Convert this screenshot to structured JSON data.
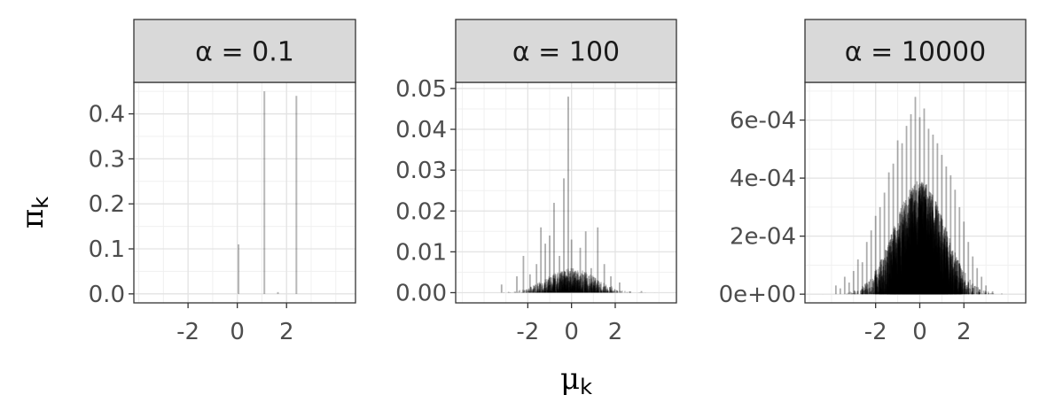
{
  "chart_data": {
    "type": "bar",
    "description_style": "faceted spike plot",
    "xlabel_symbol": "μ",
    "xlabel_sub": "k",
    "ylabel_symbol": "π",
    "ylabel_sub": "k",
    "facets": [
      {
        "strip": "α = 0.1",
        "xlim": [
          -4.2,
          4.8
        ],
        "x_ticks": [
          -2,
          0,
          2
        ],
        "x_tick_labels": [
          "-2",
          "0",
          "2"
        ],
        "ylim": [
          -0.02,
          0.47
        ],
        "y_ticks": [
          0.0,
          0.1,
          0.2,
          0.3,
          0.4
        ],
        "y_tick_labels": [
          "0.0",
          "0.1",
          "0.2",
          "0.3",
          "0.4"
        ],
        "spikes": [
          {
            "x": 0.05,
            "y": 0.11
          },
          {
            "x": 1.1,
            "y": 0.45
          },
          {
            "x": 1.65,
            "y": 0.004
          },
          {
            "x": 2.4,
            "y": 0.44
          }
        ]
      },
      {
        "strip": "α = 100",
        "xlim": [
          -5.3,
          4.8
        ],
        "x_ticks": [
          -2,
          0,
          2
        ],
        "x_tick_labels": [
          "-2",
          "0",
          "2"
        ],
        "ylim": [
          -0.0025,
          0.0515
        ],
        "y_ticks": [
          0.0,
          0.01,
          0.02,
          0.03,
          0.04,
          0.05
        ],
        "y_tick_labels": [
          "0.00",
          "0.01",
          "0.02",
          "0.03",
          "0.04",
          "0.05"
        ],
        "spikes": [
          {
            "x": -3.2,
            "y": 0.002
          },
          {
            "x": -2.5,
            "y": 0.004
          },
          {
            "x": -2.2,
            "y": 0.009
          },
          {
            "x": -1.9,
            "y": 0.0045
          },
          {
            "x": -1.6,
            "y": 0.007
          },
          {
            "x": -1.4,
            "y": 0.016
          },
          {
            "x": -1.2,
            "y": 0.012
          },
          {
            "x": -1.0,
            "y": 0.014
          },
          {
            "x": -0.8,
            "y": 0.022
          },
          {
            "x": -0.55,
            "y": 0.009
          },
          {
            "x": -0.35,
            "y": 0.028
          },
          {
            "x": -0.15,
            "y": 0.048
          },
          {
            "x": 0.0,
            "y": 0.013
          },
          {
            "x": 0.2,
            "y": 0.004
          },
          {
            "x": 0.4,
            "y": 0.011
          },
          {
            "x": 0.65,
            "y": 0.015
          },
          {
            "x": 0.9,
            "y": 0.006
          },
          {
            "x": 1.2,
            "y": 0.016
          },
          {
            "x": 1.5,
            "y": 0.007
          },
          {
            "x": 1.8,
            "y": 0.004
          },
          {
            "x": 2.2,
            "y": 0.0025
          },
          {
            "x": 3.2,
            "y": 0.0004
          }
        ]
      },
      {
        "strip": "α = 10000",
        "xlim": [
          -5.2,
          4.8
        ],
        "x_ticks": [
          -2,
          0,
          2
        ],
        "x_tick_labels": [
          "-2",
          "0",
          "2"
        ],
        "ylim": [
          -3e-05,
          0.00073
        ],
        "y_ticks": [
          0.0,
          0.0002,
          0.0004,
          0.0006
        ],
        "y_tick_labels": [
          "0e+00",
          "2e-04",
          "4e-04",
          "6e-04"
        ],
        "spikes": [
          {
            "x": -3.8,
            "y": 3e-05
          },
          {
            "x": -3.6,
            "y": 2e-05
          },
          {
            "x": -3.4,
            "y": 6e-05
          },
          {
            "x": -3.2,
            "y": 4e-05
          },
          {
            "x": -3.0,
            "y": 8e-05
          },
          {
            "x": -2.8,
            "y": 0.00012
          },
          {
            "x": -2.6,
            "y": 0.00011
          },
          {
            "x": -2.4,
            "y": 0.00018
          },
          {
            "x": -2.2,
            "y": 0.00022
          },
          {
            "x": -2.0,
            "y": 0.00027
          },
          {
            "x": -1.8,
            "y": 0.0003
          },
          {
            "x": -1.6,
            "y": 0.00035
          },
          {
            "x": -1.4,
            "y": 0.00042
          },
          {
            "x": -1.2,
            "y": 0.00045
          },
          {
            "x": -1.0,
            "y": 0.00053
          },
          {
            "x": -0.8,
            "y": 0.00052
          },
          {
            "x": -0.6,
            "y": 0.00058
          },
          {
            "x": -0.4,
            "y": 0.00062
          },
          {
            "x": -0.2,
            "y": 0.00068
          },
          {
            "x": 0.0,
            "y": 0.00061
          },
          {
            "x": 0.2,
            "y": 0.00064
          },
          {
            "x": 0.4,
            "y": 0.00057
          },
          {
            "x": 0.6,
            "y": 0.00055
          },
          {
            "x": 0.8,
            "y": 0.00052
          },
          {
            "x": 1.0,
            "y": 0.00048
          },
          {
            "x": 1.2,
            "y": 0.00044
          },
          {
            "x": 1.4,
            "y": 0.00041
          },
          {
            "x": 1.6,
            "y": 0.00036
          },
          {
            "x": 1.8,
            "y": 0.0003
          },
          {
            "x": 2.0,
            "y": 0.00025
          },
          {
            "x": 2.2,
            "y": 0.00018
          },
          {
            "x": 2.4,
            "y": 0.00013
          },
          {
            "x": 2.6,
            "y": 9e-05
          },
          {
            "x": 2.8,
            "y": 6e-05
          },
          {
            "x": 3.0,
            "y": 3e-05
          },
          {
            "x": 3.3,
            "y": 1e-05
          }
        ]
      }
    ],
    "grid": true,
    "legend": "none"
  }
}
